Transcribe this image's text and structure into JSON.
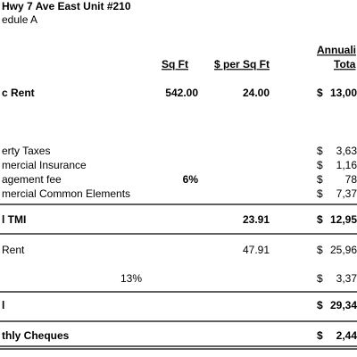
{
  "header": {
    "title": "Hwy 7 Ave East Unit #210",
    "subtitle": "edule A"
  },
  "columns": {
    "sqft": "Sq Ft",
    "rate": "$ per Sq Ft",
    "total_top": "Annuali",
    "total_bottom": "Tota"
  },
  "rows": [
    {
      "label": "c Rent",
      "sqft": "542.00",
      "rate": "24.00",
      "currency": "$",
      "total": "13,00"
    },
    {
      "label": "erty Taxes",
      "currency": "$",
      "total": "3,63"
    },
    {
      "label": "mercial Insurance",
      "currency": "$",
      "total": "1,16"
    },
    {
      "label": "agement fee",
      "sqft": "6%",
      "currency": "$",
      "total": "78"
    },
    {
      "label": "mercial Common Elements",
      "currency": "$",
      "total": "7,37"
    },
    {
      "label": "l TMI",
      "rate": "23.91",
      "currency": "$",
      "total": "12,95"
    },
    {
      "label": "Rent",
      "rate": "47.91",
      "currency": "$",
      "total": "25,96"
    },
    {
      "label": "13%",
      "currency": "$",
      "total": "3,37"
    },
    {
      "label": "l",
      "currency": "$",
      "total": "29,34"
    },
    {
      "label": "thly Cheques",
      "currency": "$",
      "total": "2,44"
    }
  ]
}
